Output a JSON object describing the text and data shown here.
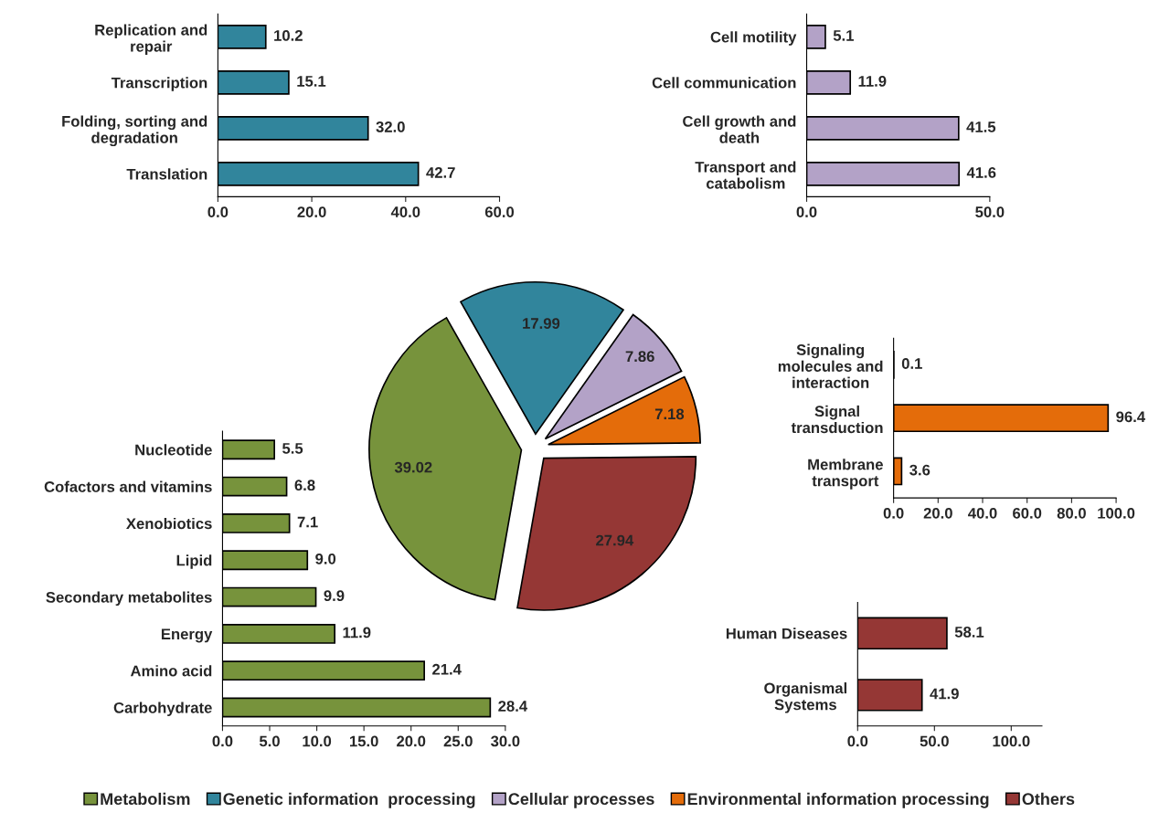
{
  "chart_data": [
    {
      "type": "bar",
      "orientation": "horizontal",
      "categories": [
        "Replication and\nrepair",
        "Transcription",
        "Folding, sorting and\ndegradation",
        "Translation"
      ],
      "values": [
        10.2,
        15.1,
        32.0,
        42.7
      ],
      "value_labels": [
        "10.2",
        "15.1",
        "32.0",
        "42.7"
      ],
      "color": "#31859c",
      "xlim": [
        0,
        60
      ],
      "xticks": [
        {
          "value": 0,
          "label": "0.0"
        },
        {
          "value": 20,
          "label": "20.0"
        },
        {
          "value": 40,
          "label": "40.0"
        },
        {
          "value": 60,
          "label": "60.0"
        }
      ],
      "grid": false
    },
    {
      "type": "bar",
      "orientation": "horizontal",
      "categories": [
        "Cell motility",
        "Cell communication",
        "Cell growth and\ndeath",
        "Transport and\ncatabolism"
      ],
      "values": [
        5.1,
        11.9,
        41.5,
        41.6
      ],
      "value_labels": [
        "5.1",
        "11.9",
        "41.5",
        "41.6"
      ],
      "color": "#b3a2c7",
      "xlim": [
        0,
        50
      ],
      "xticks": [
        {
          "value": 0,
          "label": "0.0"
        },
        {
          "value": 50,
          "label": "50.0"
        }
      ],
      "grid": false
    },
    {
      "type": "pie",
      "categories": [
        "Metabolism",
        "Genetic information  processing",
        "Cellular processes",
        "Environmental information processing",
        "Others"
      ],
      "values": [
        39.02,
        17.99,
        7.86,
        7.18,
        27.94
      ],
      "colors": [
        "#77933c",
        "#31859c",
        "#b3a2c7",
        "#e46c0a",
        "#953735"
      ],
      "data_labels": true,
      "legend": "bottom"
    },
    {
      "type": "bar",
      "orientation": "horizontal",
      "categories": [
        "Signaling\nmolecules and\ninteraction",
        "Signal\ntransduction",
        "Membrane\ntransport"
      ],
      "values": [
        0.1,
        96.4,
        3.6
      ],
      "value_labels": [
        "0.1",
        "96.4",
        "3.6"
      ],
      "color": "#e46c0a",
      "xlim": [
        0,
        100
      ],
      "xticks": [
        {
          "value": 0,
          "label": "0.0"
        },
        {
          "value": 20,
          "label": "20.0"
        },
        {
          "value": 40,
          "label": "40.0"
        },
        {
          "value": 60,
          "label": "60.0"
        },
        {
          "value": 80,
          "label": "80.0"
        },
        {
          "value": 100,
          "label": "100.0"
        }
      ],
      "grid": false
    },
    {
      "type": "bar",
      "orientation": "horizontal",
      "categories": [
        "Nucleotide",
        "Cofactors and vitamins",
        "Xenobiotics",
        "Lipid",
        "Secondary metabolites",
        "Energy",
        "Amino acid",
        "Carbohydrate"
      ],
      "values": [
        5.5,
        6.8,
        7.1,
        9.0,
        9.9,
        11.9,
        21.4,
        28.4
      ],
      "value_labels": [
        "5.5",
        "6.8",
        "7.1",
        "9.0",
        "9.9",
        "11.9",
        "21.4",
        "28.4"
      ],
      "color": "#77933c",
      "xlim": [
        0,
        30
      ],
      "xticks": [
        {
          "value": 0,
          "label": "0.0"
        },
        {
          "value": 5,
          "label": "5.0"
        },
        {
          "value": 10,
          "label": "10.0"
        },
        {
          "value": 15,
          "label": "15.0"
        },
        {
          "value": 20,
          "label": "20.0"
        },
        {
          "value": 25,
          "label": "25.0"
        },
        {
          "value": 30,
          "label": "30.0"
        }
      ],
      "grid": false
    },
    {
      "type": "bar",
      "orientation": "horizontal",
      "categories": [
        "Human Diseases",
        "Organismal\nSystems"
      ],
      "values": [
        58.1,
        41.9
      ],
      "value_labels": [
        "58.1",
        "41.9"
      ],
      "color": "#953735",
      "xlim": [
        0,
        120
      ],
      "xticks": [
        {
          "value": 0,
          "label": "0.0"
        },
        {
          "value": 50,
          "label": "50.0"
        },
        {
          "value": 100,
          "label": "100.0"
        }
      ],
      "grid": false
    }
  ]
}
